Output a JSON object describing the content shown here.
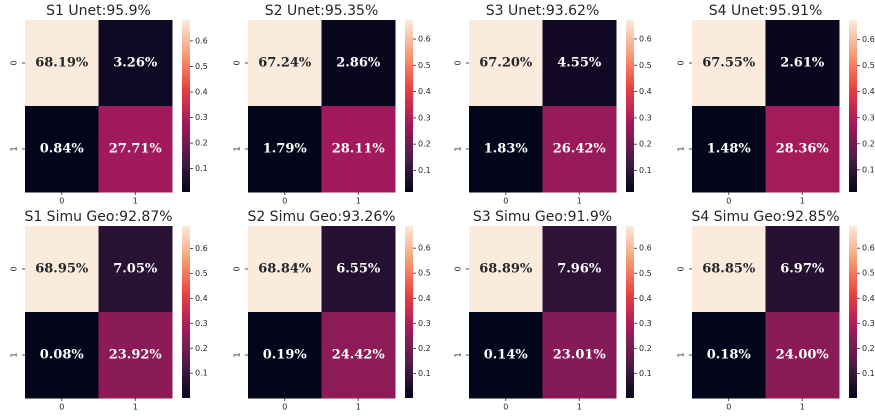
{
  "chart_data": [
    {
      "type": "heatmap",
      "title": "S1 Unet:95.9%",
      "x_categories": [
        "0",
        "1"
      ],
      "y_categories": [
        "0",
        "1"
      ],
      "values": [
        [
          0.6819,
          0.0326
        ],
        [
          0.0084,
          0.2771
        ]
      ],
      "value_labels": [
        [
          "68.19%",
          "3.26%"
        ],
        [
          "0.84%",
          "27.71%"
        ]
      ],
      "colormap": "rocket",
      "clim": [
        0.0084,
        0.6819
      ],
      "cticks": [
        0.1,
        0.2,
        0.3,
        0.4,
        0.5,
        0.6
      ]
    },
    {
      "type": "heatmap",
      "title": "S2 Unet:95.35%",
      "x_categories": [
        "0",
        "1"
      ],
      "y_categories": [
        "0",
        "1"
      ],
      "values": [
        [
          0.6724,
          0.0286
        ],
        [
          0.0179,
          0.2811
        ]
      ],
      "value_labels": [
        [
          "67.24%",
          "2.86%"
        ],
        [
          "1.79%",
          "28.11%"
        ]
      ],
      "colormap": "rocket",
      "clim": [
        0.0179,
        0.6724
      ],
      "cticks": [
        0.1,
        0.2,
        0.3,
        0.4,
        0.5,
        0.6
      ]
    },
    {
      "type": "heatmap",
      "title": "S3 Unet:93.62%",
      "x_categories": [
        "0",
        "1"
      ],
      "y_categories": [
        "0",
        "1"
      ],
      "values": [
        [
          0.672,
          0.0455
        ],
        [
          0.0183,
          0.2642
        ]
      ],
      "value_labels": [
        [
          "67.20%",
          "4.55%"
        ],
        [
          "1.83%",
          "26.42%"
        ]
      ],
      "colormap": "rocket",
      "clim": [
        0.0183,
        0.672
      ],
      "cticks": [
        0.1,
        0.2,
        0.3,
        0.4,
        0.5,
        0.6
      ]
    },
    {
      "type": "heatmap",
      "title": "S4 Unet:95.91%",
      "x_categories": [
        "0",
        "1"
      ],
      "y_categories": [
        "0",
        "1"
      ],
      "values": [
        [
          0.6755,
          0.0261
        ],
        [
          0.0148,
          0.2836
        ]
      ],
      "value_labels": [
        [
          "67.55%",
          "2.61%"
        ],
        [
          "1.48%",
          "28.36%"
        ]
      ],
      "colormap": "rocket",
      "clim": [
        0.0148,
        0.6755
      ],
      "cticks": [
        0.1,
        0.2,
        0.3,
        0.4,
        0.5,
        0.6
      ]
    },
    {
      "type": "heatmap",
      "title": "S1 Simu Geo:92.87%",
      "x_categories": [
        "0",
        "1"
      ],
      "y_categories": [
        "0",
        "1"
      ],
      "values": [
        [
          0.6895,
          0.0705
        ],
        [
          0.0008,
          0.2392
        ]
      ],
      "value_labels": [
        [
          "68.95%",
          "7.05%"
        ],
        [
          "0.08%",
          "23.92%"
        ]
      ],
      "colormap": "rocket",
      "clim": [
        0.0008,
        0.6895
      ],
      "cticks": [
        0.1,
        0.2,
        0.3,
        0.4,
        0.5,
        0.6
      ]
    },
    {
      "type": "heatmap",
      "title": "S2 Simu Geo:93.26%",
      "x_categories": [
        "0",
        "1"
      ],
      "y_categories": [
        "0",
        "1"
      ],
      "values": [
        [
          0.6884,
          0.0655
        ],
        [
          0.0019,
          0.2442
        ]
      ],
      "value_labels": [
        [
          "68.84%",
          "6.55%"
        ],
        [
          "0.19%",
          "24.42%"
        ]
      ],
      "colormap": "rocket",
      "clim": [
        0.0019,
        0.6884
      ],
      "cticks": [
        0.1,
        0.2,
        0.3,
        0.4,
        0.5,
        0.6
      ]
    },
    {
      "type": "heatmap",
      "title": "S3 Simu Geo:91.9%",
      "x_categories": [
        "0",
        "1"
      ],
      "y_categories": [
        "0",
        "1"
      ],
      "values": [
        [
          0.6889,
          0.0796
        ],
        [
          0.0014,
          0.2301
        ]
      ],
      "value_labels": [
        [
          "68.89%",
          "7.96%"
        ],
        [
          "0.14%",
          "23.01%"
        ]
      ],
      "colormap": "rocket",
      "clim": [
        0.0014,
        0.6889
      ],
      "cticks": [
        0.1,
        0.2,
        0.3,
        0.4,
        0.5,
        0.6
      ]
    },
    {
      "type": "heatmap",
      "title": "S4 Simu Geo:92.85%",
      "x_categories": [
        "0",
        "1"
      ],
      "y_categories": [
        "0",
        "1"
      ],
      "values": [
        [
          0.6885,
          0.0697
        ],
        [
          0.0018,
          0.24
        ]
      ],
      "value_labels": [
        [
          "68.85%",
          "6.97%"
        ],
        [
          "0.18%",
          "24.00%"
        ]
      ],
      "colormap": "rocket",
      "clim": [
        0.0018,
        0.6885
      ],
      "cticks": [
        0.1,
        0.2,
        0.3,
        0.4,
        0.5,
        0.6
      ]
    }
  ]
}
